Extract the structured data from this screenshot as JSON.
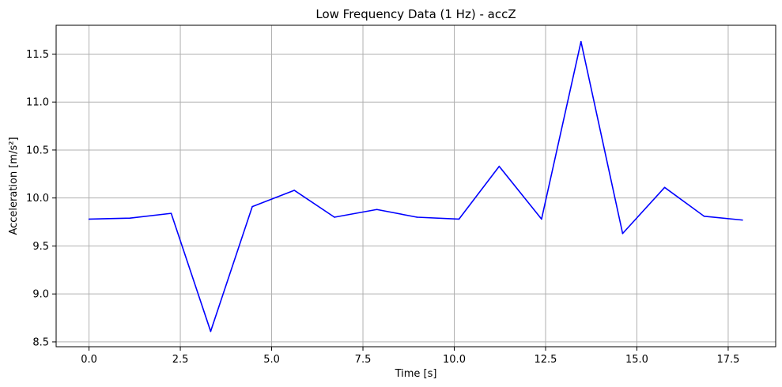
{
  "chart_data": {
    "type": "line",
    "title": "Low Frequency Data (1 Hz) - accZ",
    "xlabel": "Time [s]",
    "ylabel": "Acceleration [m/s²]",
    "xlim": [
      -0.9,
      18.8
    ],
    "ylim": [
      8.45,
      11.8
    ],
    "xticks": [
      0.0,
      2.5,
      5.0,
      7.5,
      10.0,
      12.5,
      15.0,
      17.5
    ],
    "xtick_labels": [
      "0.0",
      "2.5",
      "5.0",
      "7.5",
      "10.0",
      "12.5",
      "15.0",
      "17.5"
    ],
    "yticks": [
      8.5,
      9.0,
      9.5,
      10.0,
      10.5,
      11.0,
      11.5
    ],
    "ytick_labels": [
      "8.5",
      "9.0",
      "9.5",
      "10.0",
      "10.5",
      "11.0",
      "11.5"
    ],
    "grid": true,
    "colors": {
      "line": "#0000ff",
      "grid": "#b0b0b0",
      "axes": "#000000"
    },
    "series": [
      {
        "x": [
          0.0,
          1.12,
          2.25,
          3.33,
          4.47,
          5.62,
          6.72,
          7.88,
          8.98,
          10.13,
          11.23,
          12.39,
          13.47,
          14.61,
          15.76,
          16.84,
          17.89
        ],
        "values": [
          9.78,
          9.79,
          9.84,
          8.61,
          9.91,
          10.08,
          9.8,
          9.88,
          9.8,
          9.78,
          10.33,
          9.78,
          11.63,
          9.63,
          10.11,
          9.81,
          9.77
        ]
      }
    ]
  }
}
